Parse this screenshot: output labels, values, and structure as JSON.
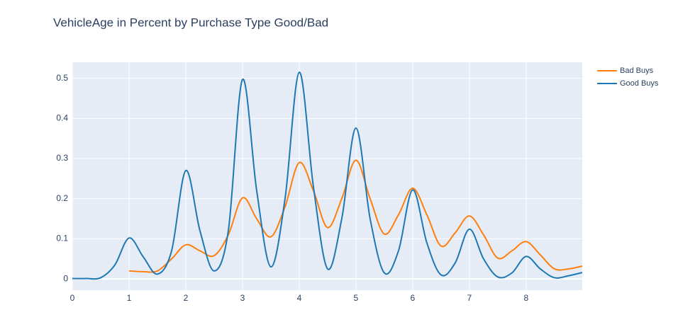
{
  "chart_data": {
    "type": "line",
    "title": "VehicleAge in Percent by Purchase Type Good/Bad",
    "series": [
      {
        "name": "Bad Buys",
        "color": "#ff7f0e",
        "x": [
          1,
          1.25,
          1.5,
          1.75,
          2,
          2.25,
          2.5,
          2.75,
          3,
          3.25,
          3.5,
          3.75,
          4,
          4.25,
          4.5,
          4.75,
          5,
          5.25,
          5.5,
          5.75,
          6,
          6.25,
          6.5,
          6.75,
          7,
          7.25,
          7.5,
          7.75,
          8,
          8.25,
          8.5,
          8.75,
          8.99
        ],
        "values": [
          0.02,
          0.018,
          0.02,
          0.05,
          0.085,
          0.07,
          0.058,
          0.11,
          0.202,
          0.15,
          0.105,
          0.18,
          0.29,
          0.22,
          0.128,
          0.2,
          0.296,
          0.2,
          0.112,
          0.16,
          0.226,
          0.16,
          0.082,
          0.115,
          0.157,
          0.11,
          0.052,
          0.07,
          0.093,
          0.06,
          0.025,
          0.025,
          0.032
        ]
      },
      {
        "name": "Good Buys",
        "color": "#1f77b4",
        "x": [
          0,
          0.25,
          0.5,
          0.75,
          1,
          1.25,
          1.5,
          1.75,
          2,
          2.25,
          2.5,
          2.75,
          3,
          3.25,
          3.5,
          3.75,
          4,
          4.25,
          4.5,
          4.75,
          5,
          5.25,
          5.5,
          5.75,
          6,
          6.25,
          6.5,
          6.75,
          7,
          7.25,
          7.5,
          7.75,
          8,
          8.25,
          8.5,
          8.75,
          8.99
        ],
        "values": [
          0.001,
          0.001,
          0.003,
          0.035,
          0.102,
          0.055,
          0.012,
          0.07,
          0.27,
          0.12,
          0.02,
          0.12,
          0.497,
          0.22,
          0.03,
          0.2,
          0.515,
          0.23,
          0.025,
          0.15,
          0.376,
          0.15,
          0.015,
          0.07,
          0.222,
          0.09,
          0.01,
          0.04,
          0.124,
          0.05,
          0.005,
          0.015,
          0.056,
          0.025,
          0.003,
          0.008,
          0.016
        ]
      }
    ],
    "xlim": [
      0,
      8.99
    ],
    "xticks": [
      0,
      1,
      2,
      3,
      4,
      5,
      6,
      7,
      8
    ],
    "ylim": [
      -0.028,
      0.54
    ],
    "yticks": [
      0,
      0.1,
      0.2,
      0.3,
      0.4,
      0.5
    ],
    "grid": true,
    "legend": "top-right"
  }
}
